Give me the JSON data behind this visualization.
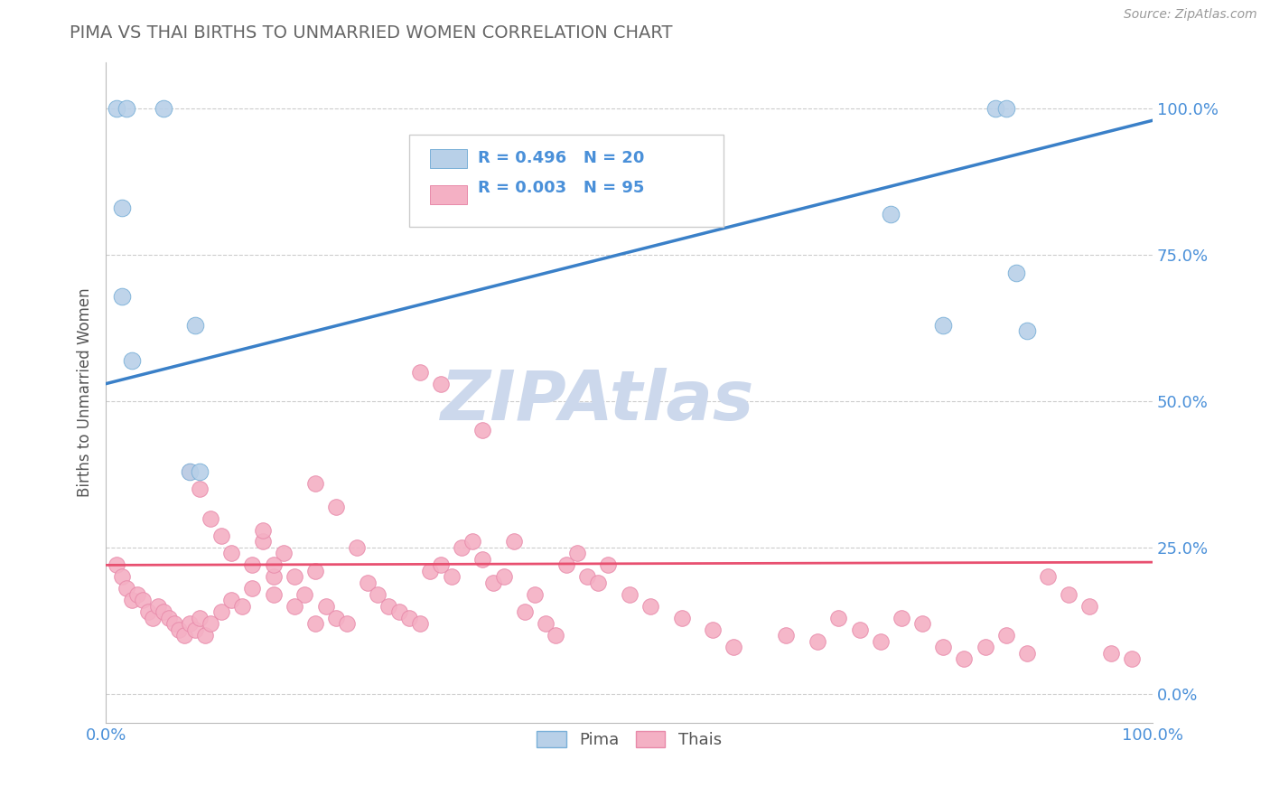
{
  "title": "PIMA VS THAI BIRTHS TO UNMARRIED WOMEN CORRELATION CHART",
  "source_text": "Source: ZipAtlas.com",
  "ylabel": "Births to Unmarried Women",
  "xlim": [
    0,
    100
  ],
  "ylim": [
    -5,
    108
  ],
  "yticks": [
    0,
    25,
    50,
    75,
    100
  ],
  "ytick_labels": [
    "0.0%",
    "25.0%",
    "50.0%",
    "75.0%",
    "100.0%"
  ],
  "xtick_labels": [
    "0.0%",
    "100.0%"
  ],
  "pima_color": "#b8d0e8",
  "thai_color": "#f4b0c4",
  "pima_edge": "#7ab0d8",
  "thai_edge": "#e88aaa",
  "trend_pima_color": "#3a80c8",
  "trend_thai_color": "#e85070",
  "background_color": "#ffffff",
  "grid_color": "#cccccc",
  "title_color": "#666666",
  "axis_label_color": "#555555",
  "tick_color": "#4a90d9",
  "watermark_color": "#ccd8ec",
  "pima_x": [
    1.0,
    2.0,
    5.5,
    1.5,
    1.5,
    2.5,
    8.0,
    8.5,
    9.0,
    75.0,
    80.0,
    85.0,
    86.0,
    87.0,
    88.0
  ],
  "pima_y": [
    100.0,
    100.0,
    100.0,
    83.0,
    68.0,
    57.0,
    38.0,
    63.0,
    38.0,
    82.0,
    63.0,
    100.0,
    100.0,
    72.0,
    62.0
  ],
  "thai_x": [
    1.0,
    1.5,
    2.0,
    2.5,
    3.0,
    3.5,
    4.0,
    4.5,
    5.0,
    5.5,
    6.0,
    6.5,
    7.0,
    7.5,
    8.0,
    8.5,
    9.0,
    9.5,
    10.0,
    11.0,
    12.0,
    13.0,
    14.0,
    15.0,
    16.0,
    17.0,
    18.0,
    19.0,
    20.0,
    21.0,
    22.0,
    23.0,
    24.0,
    25.0,
    26.0,
    27.0,
    28.0,
    29.0,
    30.0,
    31.0,
    32.0,
    33.0,
    34.0,
    35.0,
    36.0,
    37.0,
    38.0,
    39.0,
    40.0,
    41.0,
    42.0,
    43.0,
    44.0,
    45.0,
    46.0,
    47.0,
    48.0,
    50.0,
    52.0,
    55.0,
    58.0,
    60.0,
    65.0,
    68.0,
    70.0,
    72.0,
    74.0,
    76.0,
    78.0,
    80.0,
    82.0,
    84.0,
    86.0,
    88.0,
    90.0,
    92.0,
    94.0,
    96.0,
    98.0,
    30.0,
    32.0,
    36.0,
    20.0,
    22.0,
    15.0,
    16.0,
    8.0,
    9.0,
    10.0,
    11.0,
    12.0,
    14.0,
    16.0,
    18.0,
    20.0
  ],
  "thai_y": [
    22.0,
    20.0,
    18.0,
    16.0,
    17.0,
    16.0,
    14.0,
    13.0,
    15.0,
    14.0,
    13.0,
    12.0,
    11.0,
    10.0,
    12.0,
    11.0,
    13.0,
    10.0,
    12.0,
    14.0,
    16.0,
    15.0,
    22.0,
    26.0,
    20.0,
    24.0,
    20.0,
    17.0,
    21.0,
    15.0,
    13.0,
    12.0,
    25.0,
    19.0,
    17.0,
    15.0,
    14.0,
    13.0,
    12.0,
    21.0,
    22.0,
    20.0,
    25.0,
    26.0,
    23.0,
    19.0,
    20.0,
    26.0,
    14.0,
    17.0,
    12.0,
    10.0,
    22.0,
    24.0,
    20.0,
    19.0,
    22.0,
    17.0,
    15.0,
    13.0,
    11.0,
    8.0,
    10.0,
    9.0,
    13.0,
    11.0,
    9.0,
    13.0,
    12.0,
    8.0,
    6.0,
    8.0,
    10.0,
    7.0,
    20.0,
    17.0,
    15.0,
    7.0,
    6.0,
    55.0,
    53.0,
    45.0,
    36.0,
    32.0,
    28.0,
    22.0,
    38.0,
    35.0,
    30.0,
    27.0,
    24.0,
    18.0,
    17.0,
    15.0,
    12.0
  ],
  "pima_trend_x": [
    0,
    100
  ],
  "pima_trend_y": [
    53.0,
    98.0
  ],
  "thai_trend_x": [
    0,
    100
  ],
  "thai_trend_y": [
    22.0,
    22.5
  ]
}
